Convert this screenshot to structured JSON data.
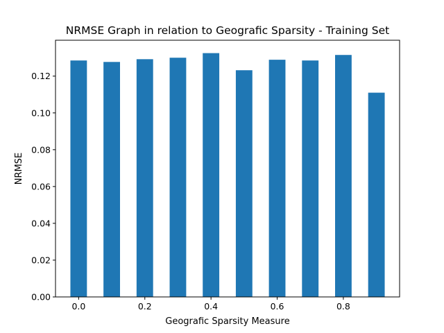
{
  "chart_data": {
    "type": "bar",
    "title": "NRMSE Graph in relation to Geografic Sparsity - Training Set",
    "xlabel": "Geografic Sparsity Measure",
    "ylabel": "NRMSE",
    "x": [
      0.0,
      0.1,
      0.2,
      0.3,
      0.4,
      0.5,
      0.6,
      0.7,
      0.8,
      0.9
    ],
    "values": [
      0.1285,
      0.1277,
      0.1292,
      0.13,
      0.1325,
      0.1232,
      0.1289,
      0.1285,
      0.1315,
      0.111
    ],
    "bar_width": 0.05,
    "xlim": [
      -0.07,
      0.97
    ],
    "ylim": [
      0,
      0.1395
    ],
    "xticks": [
      0.0,
      0.2,
      0.4,
      0.6,
      0.8
    ],
    "xtick_labels": [
      "0.0",
      "0.2",
      "0.4",
      "0.6",
      "0.8"
    ],
    "yticks": [
      0.0,
      0.02,
      0.04,
      0.06,
      0.08,
      0.1,
      0.12
    ],
    "ytick_labels": [
      "0.00",
      "0.02",
      "0.04",
      "0.06",
      "0.08",
      "0.10",
      "0.12"
    ],
    "bar_color": "#1f77b4",
    "grid": false,
    "legend": false
  }
}
